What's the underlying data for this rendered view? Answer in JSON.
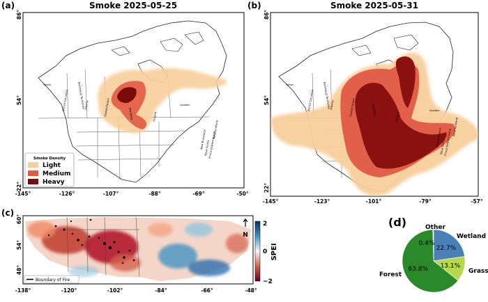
{
  "panel_a": {
    "label": "(a)",
    "title": "Smoke 2025-05-25",
    "x_ticks": [
      "-145°",
      "-126°",
      "-107°",
      "-88°",
      "-69°",
      "-50°"
    ],
    "y_ticks": [
      "86°",
      "54°",
      "22°"
    ],
    "legend": {
      "title": "Smoke Density",
      "items": [
        {
          "label": "Light",
          "color": "#f8cf9c"
        },
        {
          "label": "Medium",
          "color": "#e05a44"
        },
        {
          "label": "Heavy",
          "color": "#7a0b0b"
        }
      ]
    },
    "regions": [
      "Yukon",
      "British Columbia",
      "Northwest Territories",
      "Alberta",
      "Saskatchewan",
      "Manitoba",
      "Ontario",
      "Quebec",
      "New Brunswick",
      "Nova Scotia",
      "Prince Edward Island",
      "Newfoundland"
    ]
  },
  "panel_b": {
    "label": "(b)",
    "title": "Smoke 2025-05-31",
    "x_ticks": [
      "-145°",
      "-123°",
      "-101°",
      "-79°",
      "-57°"
    ],
    "y_ticks": [
      "86°",
      "54°",
      "22°"
    ],
    "regions": [
      "Yukon",
      "British Columbia",
      "Northwest Territories",
      "Alberta",
      "Saskatchewan",
      "Manitoba",
      "Ontario",
      "Quebec",
      "New Brunswick",
      "Nova Scotia",
      "Prince Edward Island",
      "Newfoundland"
    ]
  },
  "panel_c": {
    "label": "(c)",
    "x_ticks": [
      "-138°",
      "-120°",
      "-102°",
      "-84°",
      "-66°",
      "-48°"
    ],
    "y_ticks": [
      "60°",
      "54°",
      "48°"
    ],
    "colorbar": {
      "label": "SPEI",
      "ticks": [
        "2",
        "0",
        "−2"
      ]
    },
    "north": "N",
    "legend_boundary": "Boundary of Fire"
  },
  "panel_d": {
    "label": "(d)",
    "chart_data": {
      "type": "pie",
      "slices": [
        {
          "name": "Forest",
          "value": 63.8,
          "label": "63.8%",
          "color": "#2a8a2a"
        },
        {
          "name": "Grass",
          "value": 13.1,
          "label": "13.1%",
          "color": "#b5d94a"
        },
        {
          "name": "Wetland",
          "value": 22.7,
          "label": "22.7%",
          "color": "#4a80b8"
        },
        {
          "name": "Other",
          "value": 0.4,
          "label": "0.4%",
          "color": "#d9d9d9"
        }
      ]
    }
  }
}
